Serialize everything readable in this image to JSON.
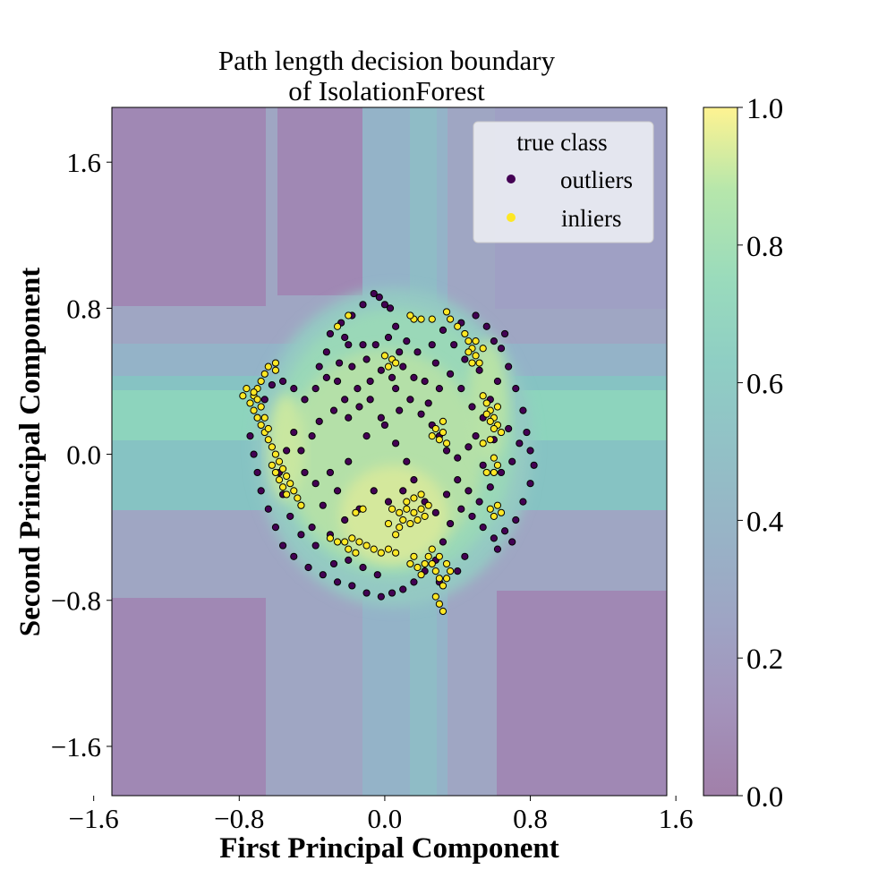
{
  "chart_data": {
    "type": "scatter",
    "title": "Path length decision boundary\nof IsolationForest",
    "title_lines": [
      "Path length decision boundary",
      "of IsolationForest"
    ],
    "xlabel": "First Principal Component",
    "ylabel": "Second Principal Component",
    "xlim": [
      -1.5,
      1.55
    ],
    "ylim": [
      -1.87,
      1.9
    ],
    "xticks": [
      -1.6,
      -0.8,
      0.0,
      0.8,
      1.6
    ],
    "yticks": [
      -1.6,
      -0.8,
      0.0,
      0.8,
      1.6
    ],
    "xtick_labels": [
      "−1.6",
      "−0.8",
      "0.0",
      "0.8",
      "1.6"
    ],
    "ytick_labels": [
      "−1.6",
      "−0.8",
      "0.0",
      "0.8",
      "1.6"
    ],
    "colorbar": {
      "range": [
        0.0,
        1.0
      ],
      "ticks": [
        0.0,
        0.2,
        0.4,
        0.6,
        0.8,
        1.0
      ],
      "tick_labels": [
        "0.0",
        "0.2",
        "0.4",
        "0.6",
        "0.8",
        "1.0"
      ],
      "colormap": "viridis",
      "alpha": 0.5
    },
    "background": "decision-function contour of IsolationForest path length (0 outer corners to ~0.9 at data core)",
    "grid": false,
    "legend": {
      "title": "true class",
      "placement": "upper right",
      "entries": [
        {
          "label": "outliers",
          "color": "#440154"
        },
        {
          "label": "inliers",
          "color": "#fde725"
        }
      ]
    },
    "series": [
      {
        "name": "outliers",
        "color": "#440154",
        "points": [
          [
            -0.06,
            0.88
          ],
          [
            -0.03,
            0.86
          ],
          [
            0.0,
            0.82
          ],
          [
            0.03,
            0.8
          ],
          [
            -0.12,
            0.82
          ],
          [
            -0.18,
            0.76
          ],
          [
            -0.24,
            0.72
          ],
          [
            -0.3,
            0.66
          ],
          [
            -0.2,
            0.6
          ],
          [
            -0.25,
            0.5
          ],
          [
            -0.18,
            0.48
          ],
          [
            -0.1,
            0.52
          ],
          [
            -0.05,
            0.6
          ],
          [
            0.06,
            0.7
          ],
          [
            0.12,
            0.62
          ],
          [
            0.18,
            0.56
          ],
          [
            0.1,
            0.48
          ],
          [
            0.04,
            0.42
          ],
          [
            -0.08,
            0.4
          ],
          [
            -0.15,
            0.36
          ],
          [
            -0.22,
            0.3
          ],
          [
            -0.28,
            0.24
          ],
          [
            -0.36,
            0.18
          ],
          [
            -0.4,
            0.1
          ],
          [
            -0.46,
            0.02
          ],
          [
            -0.44,
            -0.1
          ],
          [
            -0.38,
            -0.16
          ],
          [
            -0.3,
            -0.1
          ],
          [
            -0.2,
            -0.04
          ],
          [
            -0.1,
            0.1
          ],
          [
            0.0,
            0.16
          ],
          [
            0.08,
            0.24
          ],
          [
            0.14,
            0.3
          ],
          [
            0.2,
            0.22
          ],
          [
            0.26,
            0.16
          ],
          [
            0.3,
            0.1
          ],
          [
            0.34,
            0.02
          ],
          [
            0.4,
            -0.02
          ],
          [
            0.46,
            0.04
          ],
          [
            0.5,
            0.1
          ],
          [
            0.54,
            0.2
          ],
          [
            0.58,
            0.3
          ],
          [
            0.62,
            0.4
          ],
          [
            0.52,
            0.46
          ],
          [
            0.44,
            0.52
          ],
          [
            0.38,
            0.6
          ],
          [
            0.32,
            0.68
          ],
          [
            0.42,
            0.72
          ],
          [
            0.5,
            0.76
          ],
          [
            0.56,
            0.7
          ],
          [
            0.64,
            0.58
          ],
          [
            0.68,
            0.48
          ],
          [
            0.72,
            0.36
          ],
          [
            0.76,
            0.24
          ],
          [
            0.78,
            0.12
          ],
          [
            0.8,
            0.02
          ],
          [
            0.82,
            -0.06
          ],
          [
            0.8,
            -0.16
          ],
          [
            0.76,
            -0.26
          ],
          [
            0.72,
            -0.36
          ],
          [
            0.66,
            -0.42
          ],
          [
            0.6,
            -0.46
          ],
          [
            0.54,
            -0.4
          ],
          [
            0.48,
            -0.34
          ],
          [
            0.42,
            -0.3
          ],
          [
            0.36,
            -0.38
          ],
          [
            0.32,
            -0.48
          ],
          [
            0.28,
            -0.58
          ],
          [
            0.22,
            -0.64
          ],
          [
            0.16,
            -0.7
          ],
          [
            0.1,
            -0.74
          ],
          [
            0.04,
            -0.76
          ],
          [
            -0.02,
            -0.78
          ],
          [
            -0.1,
            -0.76
          ],
          [
            -0.18,
            -0.72
          ],
          [
            -0.26,
            -0.7
          ],
          [
            -0.34,
            -0.66
          ],
          [
            -0.42,
            -0.62
          ],
          [
            -0.5,
            -0.56
          ],
          [
            -0.56,
            -0.5
          ],
          [
            -0.6,
            -0.4
          ],
          [
            -0.64,
            -0.3
          ],
          [
            -0.68,
            -0.2
          ],
          [
            -0.7,
            -0.1
          ],
          [
            -0.72,
            0.0
          ],
          [
            -0.74,
            0.1
          ],
          [
            -0.7,
            0.2
          ],
          [
            -0.66,
            0.3
          ],
          [
            -0.62,
            0.38
          ],
          [
            -0.56,
            0.4
          ],
          [
            -0.5,
            0.36
          ],
          [
            -0.44,
            0.3
          ],
          [
            -0.38,
            0.36
          ],
          [
            -0.32,
            0.42
          ],
          [
            -0.26,
            0.4
          ],
          [
            -0.2,
            0.2
          ],
          [
            -0.14,
            0.26
          ],
          [
            -0.08,
            0.3
          ],
          [
            -0.02,
            0.2
          ],
          [
            0.06,
            0.06
          ],
          [
            0.12,
            -0.04
          ],
          [
            0.16,
            -0.14
          ],
          [
            0.1,
            -0.2
          ],
          [
            0.02,
            -0.26
          ],
          [
            -0.06,
            -0.2
          ],
          [
            -0.14,
            -0.3
          ],
          [
            -0.22,
            -0.36
          ],
          [
            -0.3,
            -0.44
          ],
          [
            -0.38,
            -0.5
          ],
          [
            -0.46,
            -0.44
          ],
          [
            -0.52,
            -0.34
          ],
          [
            -0.56,
            -0.22
          ],
          [
            -0.58,
            -0.1
          ],
          [
            -0.54,
            0.02
          ],
          [
            -0.5,
            0.12
          ],
          [
            0.22,
            -0.26
          ],
          [
            0.28,
            -0.32
          ],
          [
            0.34,
            -0.22
          ],
          [
            0.4,
            -0.14
          ],
          [
            0.46,
            -0.2
          ],
          [
            0.52,
            -0.26
          ],
          [
            0.58,
            -0.18
          ],
          [
            0.64,
            -0.1
          ],
          [
            0.7,
            -0.04
          ],
          [
            0.74,
            0.06
          ],
          [
            0.68,
            0.14
          ],
          [
            0.6,
            0.08
          ],
          [
            0.54,
            -0.06
          ],
          [
            0.48,
            0.26
          ],
          [
            0.42,
            0.36
          ],
          [
            0.36,
            0.44
          ],
          [
            0.28,
            0.5
          ],
          [
            0.22,
            0.4
          ],
          [
            0.16,
            0.42
          ],
          [
            0.24,
            0.28
          ],
          [
            0.3,
            0.36
          ],
          [
            0.06,
            0.36
          ],
          [
            -0.02,
            0.46
          ],
          [
            -0.12,
            0.6
          ],
          [
            -0.22,
            0.64
          ],
          [
            -0.32,
            0.56
          ],
          [
            -0.36,
            0.48
          ],
          [
            0.02,
            0.64
          ],
          [
            0.08,
            0.56
          ],
          [
            0.26,
            0.6
          ],
          [
            0.6,
            0.62
          ],
          [
            0.66,
            0.66
          ],
          [
            0.7,
            -0.48
          ],
          [
            0.62,
            -0.52
          ],
          [
            0.44,
            -0.56
          ],
          [
            0.4,
            -0.64
          ],
          [
            0.3,
            -0.7
          ],
          [
            -0.04,
            -0.66
          ],
          [
            -0.12,
            -0.62
          ],
          [
            -0.2,
            -0.58
          ],
          [
            -0.28,
            -0.6
          ],
          [
            -0.46,
            -0.28
          ],
          [
            -0.4,
            -0.4
          ],
          [
            -0.34,
            -0.28
          ],
          [
            -0.26,
            -0.2
          ]
        ]
      },
      {
        "name": "inliers",
        "color": "#fde725",
        "points": [
          [
            -0.64,
            0.48
          ],
          [
            -0.66,
            0.44
          ],
          [
            -0.68,
            0.4
          ],
          [
            -0.7,
            0.36
          ],
          [
            -0.72,
            0.32
          ],
          [
            -0.74,
            0.28
          ],
          [
            -0.72,
            0.24
          ],
          [
            -0.7,
            0.2
          ],
          [
            -0.68,
            0.16
          ],
          [
            -0.66,
            0.12
          ],
          [
            -0.64,
            0.08
          ],
          [
            -0.62,
            0.04
          ],
          [
            -0.6,
            0.0
          ],
          [
            -0.58,
            -0.04
          ],
          [
            -0.56,
            -0.08
          ],
          [
            -0.54,
            -0.12
          ],
          [
            -0.52,
            -0.16
          ],
          [
            -0.5,
            -0.2
          ],
          [
            -0.48,
            -0.24
          ],
          [
            -0.46,
            -0.28
          ],
          [
            -0.62,
            -0.06
          ],
          [
            -0.6,
            -0.1
          ],
          [
            -0.58,
            -0.14
          ],
          [
            -0.56,
            -0.18
          ],
          [
            -0.54,
            -0.22
          ],
          [
            -0.7,
            0.3
          ],
          [
            -0.72,
            0.34
          ],
          [
            -0.68,
            0.26
          ],
          [
            -0.66,
            0.2
          ],
          [
            -0.64,
            0.14
          ],
          [
            -0.3,
            -0.46
          ],
          [
            -0.26,
            -0.48
          ],
          [
            -0.22,
            -0.48
          ],
          [
            -0.18,
            -0.46
          ],
          [
            -0.14,
            -0.48
          ],
          [
            -0.1,
            -0.5
          ],
          [
            -0.06,
            -0.52
          ],
          [
            -0.02,
            -0.54
          ],
          [
            0.02,
            -0.52
          ],
          [
            0.06,
            -0.54
          ],
          [
            -0.2,
            -0.52
          ],
          [
            -0.16,
            -0.54
          ],
          [
            0.04,
            -0.3
          ],
          [
            0.08,
            -0.32
          ],
          [
            0.12,
            -0.3
          ],
          [
            0.16,
            -0.32
          ],
          [
            0.2,
            -0.3
          ],
          [
            0.24,
            -0.28
          ],
          [
            0.1,
            -0.36
          ],
          [
            0.14,
            -0.38
          ],
          [
            0.18,
            -0.36
          ],
          [
            0.22,
            -0.34
          ],
          [
            0.12,
            -0.26
          ],
          [
            0.16,
            -0.24
          ],
          [
            0.2,
            -0.22
          ],
          [
            0.08,
            -0.4
          ],
          [
            0.06,
            -0.44
          ],
          [
            0.02,
            -0.38
          ],
          [
            -0.12,
            -0.3
          ],
          [
            -0.16,
            -0.32
          ],
          [
            0.24,
            -0.56
          ],
          [
            0.26,
            -0.6
          ],
          [
            0.28,
            -0.64
          ],
          [
            0.3,
            -0.68
          ],
          [
            0.32,
            -0.72
          ],
          [
            0.28,
            -0.78
          ],
          [
            0.3,
            -0.82
          ],
          [
            0.32,
            -0.86
          ],
          [
            0.26,
            -0.52
          ],
          [
            0.3,
            -0.56
          ],
          [
            0.34,
            -0.6
          ],
          [
            0.36,
            -0.64
          ],
          [
            0.34,
            -0.68
          ],
          [
            0.22,
            -0.6
          ],
          [
            0.2,
            -0.66
          ],
          [
            0.14,
            -0.6
          ],
          [
            0.16,
            -0.56
          ],
          [
            0.18,
            -0.62
          ],
          [
            0.34,
            0.78
          ],
          [
            0.36,
            0.74
          ],
          [
            0.4,
            0.7
          ],
          [
            0.44,
            0.66
          ],
          [
            0.46,
            0.62
          ],
          [
            0.48,
            0.58
          ],
          [
            0.5,
            0.54
          ],
          [
            0.52,
            0.5
          ],
          [
            0.46,
            0.56
          ],
          [
            0.5,
            0.62
          ],
          [
            0.48,
            0.5
          ],
          [
            0.54,
            0.58
          ],
          [
            0.54,
            0.32
          ],
          [
            0.56,
            0.28
          ],
          [
            0.58,
            0.24
          ],
          [
            0.6,
            0.2
          ],
          [
            0.62,
            0.16
          ],
          [
            0.64,
            0.12
          ],
          [
            0.58,
            0.18
          ],
          [
            0.62,
            0.26
          ],
          [
            0.56,
            0.22
          ],
          [
            0.6,
            0.14
          ],
          [
            0.54,
            0.06
          ],
          [
            0.58,
            0.08
          ],
          [
            0.6,
            -0.02
          ],
          [
            0.62,
            -0.06
          ],
          [
            0.56,
            -0.1
          ],
          [
            0.6,
            -0.1
          ],
          [
            0.58,
            -0.3
          ],
          [
            0.6,
            -0.34
          ],
          [
            0.62,
            -0.28
          ],
          [
            0.64,
            -0.32
          ],
          [
            0.28,
            0.14
          ],
          [
            0.32,
            0.12
          ],
          [
            0.3,
            0.08
          ],
          [
            0.34,
            0.06
          ],
          [
            0.32,
            0.18
          ],
          [
            0.26,
            0.1
          ],
          [
            0.0,
            0.54
          ],
          [
            0.04,
            0.52
          ],
          [
            0.02,
            0.48
          ],
          [
            0.06,
            0.5
          ],
          [
            0.16,
            0.74
          ],
          [
            0.14,
            0.76
          ],
          [
            0.2,
            0.74
          ],
          [
            0.26,
            0.74
          ],
          [
            -0.6,
            0.46
          ],
          [
            -0.6,
            0.5
          ],
          [
            -0.76,
            0.36
          ],
          [
            -0.78,
            0.32
          ],
          [
            -0.2,
            0.76
          ],
          [
            -0.26,
            0.7
          ]
        ]
      }
    ]
  }
}
